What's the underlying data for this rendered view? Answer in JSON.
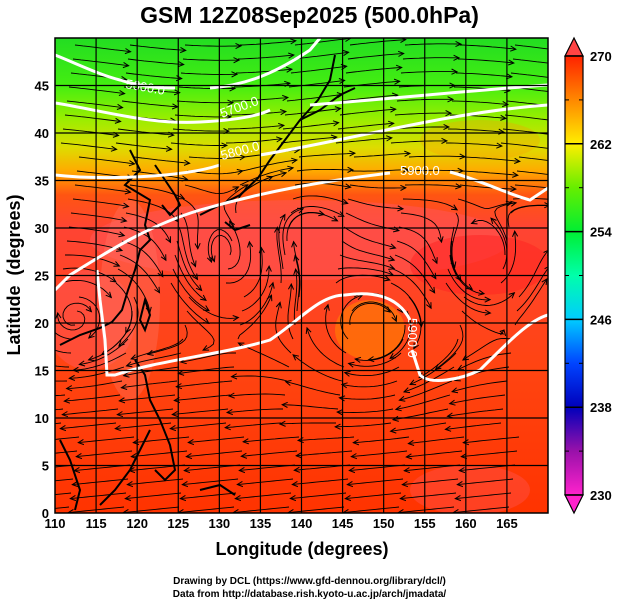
{
  "chart_data": {
    "type": "heatmap",
    "title": "GSM 12Z08Sep2025 (500.0hPa)",
    "xlabel": "Longitude (degrees)",
    "ylabel": "Latitude  (degrees)",
    "xlim": [
      110,
      170
    ],
    "ylim": [
      0,
      50
    ],
    "x_ticks": [
      "110",
      "115",
      "120",
      "125",
      "130",
      "135",
      "140",
      "145",
      "150",
      "155",
      "160",
      "165"
    ],
    "y_ticks": [
      "0",
      "5",
      "10",
      "15",
      "20",
      "25",
      "30",
      "35",
      "40",
      "45"
    ],
    "grid": true,
    "colorbar": {
      "range": [
        230,
        270
      ],
      "ticks": [
        "230",
        "238",
        "246",
        "254",
        "262",
        "270"
      ],
      "extend": "both",
      "colors": [
        "#ff33cc",
        "#8800aa",
        "#0000cc",
        "#0055ff",
        "#00ddff",
        "#00ff88",
        "#00ee00",
        "#88ff00",
        "#ffff00",
        "#ffaa00",
        "#ff5500",
        "#ff2200"
      ]
    },
    "contours": [
      {
        "label": "5600.0",
        "value": 5600.0
      },
      {
        "label": "5700.0",
        "value": 5700.0
      },
      {
        "label": "5800.0",
        "value": 5800.0
      },
      {
        "label": "5900.0",
        "value": 5900.0
      },
      {
        "label": "5900.0",
        "value": 5900.0
      }
    ],
    "overlay": "streamlines"
  },
  "credits": {
    "line1": "Drawing by DCL (https://www.gfd-dennou.org/library/dcl/)",
    "line2": "Data from http://database.rish.kyoto-u.ac.jp/arch/jmadata/"
  }
}
